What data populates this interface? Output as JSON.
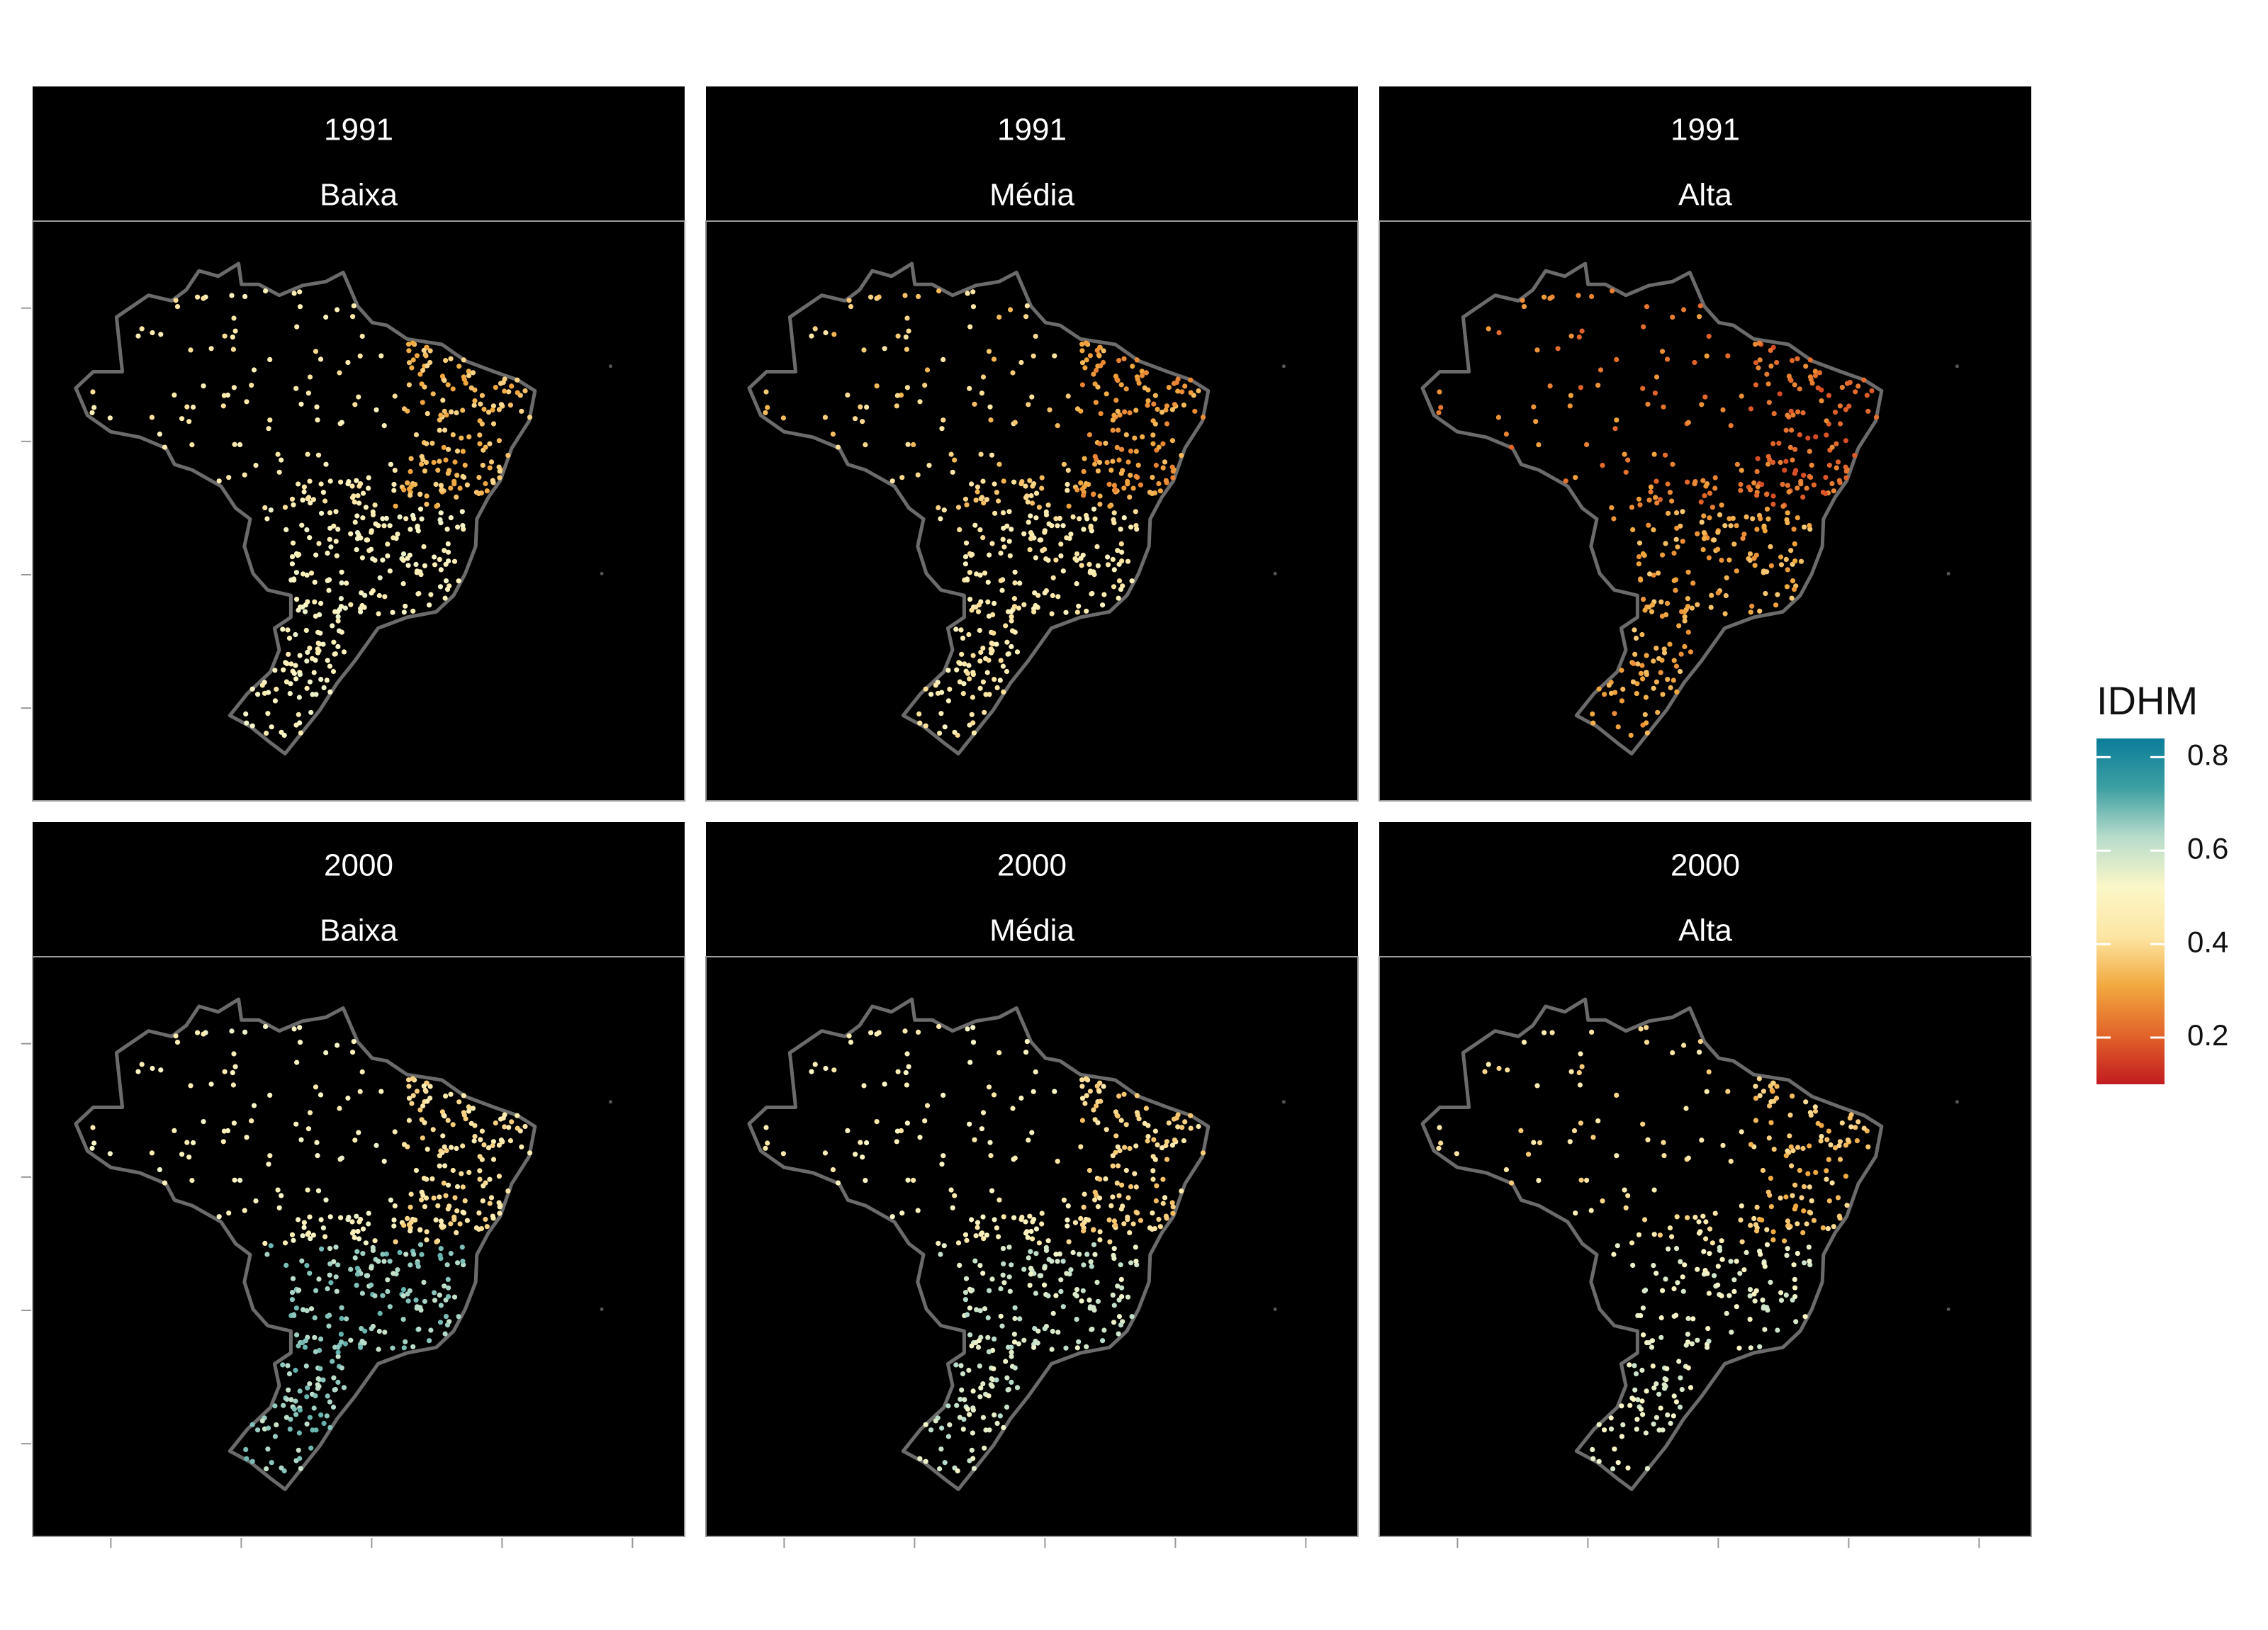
{
  "colors": {
    "panel_background": "#000000",
    "strip_background": "#000000",
    "strip_text": "#ffffff",
    "border_outline": "#6b6b6b",
    "page_background": "#ffffff"
  },
  "legend": {
    "title": "IDHM",
    "ticks": [
      {
        "value": 0.8,
        "label": "0.8"
      },
      {
        "value": 0.6,
        "label": "0.6"
      },
      {
        "value": 0.4,
        "label": "0.4"
      },
      {
        "value": 0.2,
        "label": "0.2"
      }
    ],
    "range": [
      0.1,
      0.84
    ],
    "colors": [
      "#c21b20",
      "#e2642a",
      "#f2a93f",
      "#fde6a4",
      "#fbf7c8",
      "#b7dccb",
      "#3d9fa2",
      "#0b7d9a"
    ]
  },
  "chart_data": {
    "type": "scatter",
    "map": "Brazil municipalities",
    "color_variable": "IDHM",
    "facet_rows": [
      "1991",
      "2000"
    ],
    "facet_columns": [
      "Baixa",
      "Média",
      "Alta"
    ],
    "panels": [
      {
        "year": "1991",
        "group": "Baixa",
        "idhm_typical": 0.45,
        "idhm_south_center": 0.5,
        "idhm_northeast": 0.35
      },
      {
        "year": "1991",
        "group": "Média",
        "idhm_typical": 0.38,
        "idhm_south_center": 0.45,
        "idhm_northeast": 0.3
      },
      {
        "year": "1991",
        "group": "Alta",
        "idhm_typical": 0.25,
        "idhm_south_center": 0.32,
        "idhm_northeast": 0.22
      },
      {
        "year": "2000",
        "group": "Baixa",
        "idhm_typical": 0.5,
        "idhm_south_center": 0.65,
        "idhm_northeast": 0.42
      },
      {
        "year": "2000",
        "group": "Média",
        "idhm_typical": 0.48,
        "idhm_south_center": 0.58,
        "idhm_northeast": 0.4
      },
      {
        "year": "2000",
        "group": "Alta",
        "idhm_typical": 0.42,
        "idhm_south_center": 0.55,
        "idhm_northeast": 0.36
      }
    ]
  }
}
